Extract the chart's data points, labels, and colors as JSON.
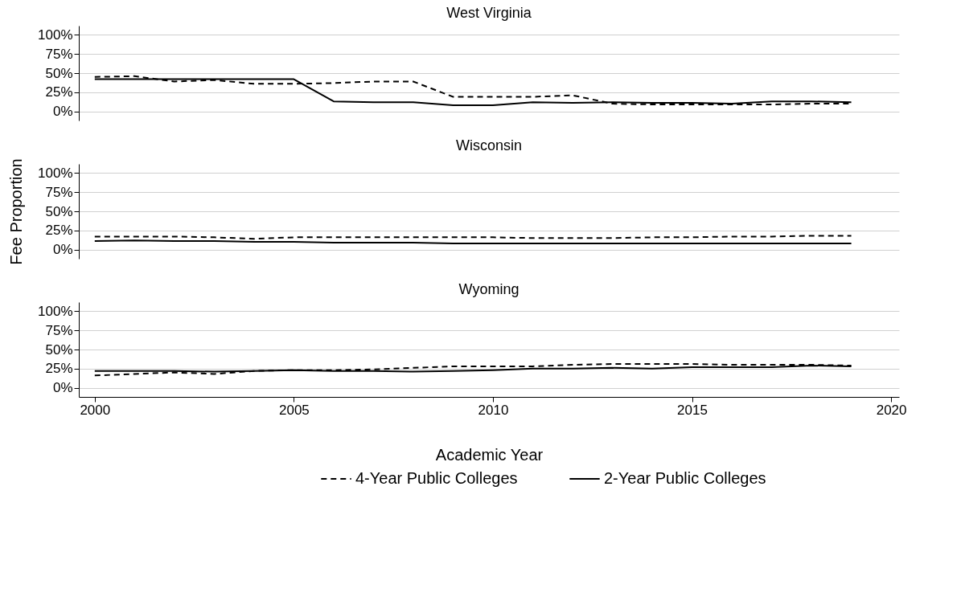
{
  "chart_data": [
    {
      "type": "line",
      "title": "West Virginia",
      "x": [
        2000,
        2001,
        2002,
        2003,
        2004,
        2005,
        2006,
        2007,
        2008,
        2009,
        2010,
        2011,
        2012,
        2013,
        2014,
        2015,
        2016,
        2017,
        2018,
        2019
      ],
      "xlim": [
        1999.6,
        2020.2
      ],
      "xticks": [
        2000,
        2005,
        2010,
        2015,
        2020
      ],
      "ylim": [
        -12,
        112
      ],
      "yticks": [
        {
          "value": 0,
          "label": "0%"
        },
        {
          "value": 25,
          "label": "25%"
        },
        {
          "value": 50,
          "label": "50%"
        },
        {
          "value": 75,
          "label": "75%"
        },
        {
          "value": 100,
          "label": "100%"
        }
      ],
      "grid": "y",
      "legend": false,
      "tick_labels": "y",
      "series": [
        {
          "color": "#000000",
          "line_style": "dashed",
          "values": [
            45,
            46,
            39,
            41,
            36,
            36,
            37,
            39,
            39,
            19,
            19,
            19,
            21,
            10,
            9,
            9,
            9,
            9,
            10,
            10
          ]
        },
        {
          "color": "#000000",
          "line_style": "solid",
          "values": [
            42,
            42,
            42,
            42,
            42,
            42,
            13,
            12,
            12,
            8,
            8,
            12,
            11,
            12,
            11,
            11,
            10,
            13,
            13,
            12
          ]
        }
      ]
    },
    {
      "type": "line",
      "title": "Wisconsin",
      "ylabel": "Fee Proportion",
      "x": [
        2000,
        2001,
        2002,
        2003,
        2004,
        2005,
        2006,
        2007,
        2008,
        2009,
        2010,
        2011,
        2012,
        2013,
        2014,
        2015,
        2016,
        2017,
        2018,
        2019
      ],
      "xlim": [
        1999.6,
        2020.2
      ],
      "xticks": [
        2000,
        2005,
        2010,
        2015,
        2020
      ],
      "ylim": [
        -12,
        112
      ],
      "yticks": [
        {
          "value": 0,
          "label": "0%"
        },
        {
          "value": 25,
          "label": "25%"
        },
        {
          "value": 50,
          "label": "50%"
        },
        {
          "value": 75,
          "label": "75%"
        },
        {
          "value": 100,
          "label": "100%"
        }
      ],
      "grid": "y",
      "legend": false,
      "tick_labels": "y",
      "series": [
        {
          "color": "#000000",
          "line_style": "dashed",
          "values": [
            17,
            17,
            17,
            16,
            14,
            16,
            16,
            16,
            16,
            16,
            16,
            15,
            15,
            15,
            16,
            16,
            17,
            17,
            18,
            18
          ]
        },
        {
          "color": "#000000",
          "line_style": "solid",
          "values": [
            11,
            12,
            11,
            11,
            10,
            10,
            9,
            9,
            9,
            8,
            8,
            8,
            8,
            8,
            8,
            8,
            8,
            8,
            8,
            8
          ]
        }
      ]
    },
    {
      "type": "line",
      "title": "Wyoming",
      "xlabel": "Academic Year",
      "x": [
        2000,
        2001,
        2002,
        2003,
        2004,
        2005,
        2006,
        2007,
        2008,
        2009,
        2010,
        2011,
        2012,
        2013,
        2014,
        2015,
        2016,
        2017,
        2018,
        2019
      ],
      "xlim": [
        1999.6,
        2020.2
      ],
      "xticks": [
        2000,
        2005,
        2010,
        2015,
        2020
      ],
      "ylim": [
        -12,
        112
      ],
      "yticks": [
        {
          "value": 0,
          "label": "0%"
        },
        {
          "value": 25,
          "label": "25%"
        },
        {
          "value": 50,
          "label": "50%"
        },
        {
          "value": 75,
          "label": "75%"
        },
        {
          "value": 100,
          "label": "100%"
        }
      ],
      "grid": "y",
      "legend": "bottom",
      "series": [
        {
          "name": "4-Year Public Colleges",
          "color": "#000000",
          "line_style": "dashed",
          "values": [
            16,
            18,
            20,
            18,
            22,
            23,
            23,
            24,
            26,
            28,
            28,
            28,
            30,
            31,
            31,
            31,
            30,
            30,
            30,
            29
          ]
        },
        {
          "name": "2-Year Public Colleges",
          "color": "#000000",
          "line_style": "solid",
          "values": [
            22,
            22,
            22,
            21,
            22,
            23,
            22,
            22,
            21,
            22,
            23,
            25,
            25,
            26,
            25,
            27,
            27,
            27,
            29,
            28
          ]
        }
      ]
    }
  ]
}
